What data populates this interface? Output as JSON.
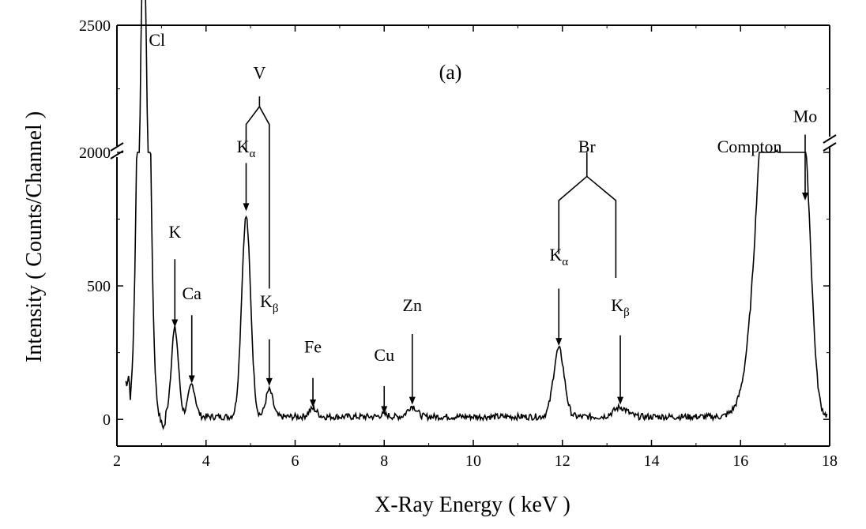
{
  "chart_data": {
    "type": "line",
    "title": "",
    "panel_label": "(a)",
    "xlabel": "X-Ray Energy ( keV )",
    "ylabel": "Intensity ( Counts/Channel )",
    "xlim": [
      2,
      18
    ],
    "ylim_lower": [
      -100,
      1000
    ],
    "ylim_upper": [
      2000,
      2500
    ],
    "x_ticks": [
      "2",
      "4",
      "6",
      "8",
      "10",
      "12",
      "14",
      "16",
      "18"
    ],
    "y_ticks": [
      "0",
      "500",
      "2000",
      "2500"
    ],
    "broken_y_axis": true,
    "grid": false,
    "series": [
      {
        "peaks": [
          {
            "center": 2.6,
            "height": 2800,
            "width": 0.11
          },
          {
            "center": 3.3,
            "height": 330,
            "width": 0.08
          },
          {
            "center": 3.68,
            "height": 120,
            "width": 0.08
          },
          {
            "center": 4.9,
            "height": 750,
            "width": 0.1
          },
          {
            "center": 5.42,
            "height": 100,
            "width": 0.08
          },
          {
            "center": 6.4,
            "height": 30,
            "width": 0.09
          },
          {
            "center": 8.0,
            "height": 8,
            "width": 0.09
          },
          {
            "center": 8.63,
            "height": 40,
            "width": 0.1
          },
          {
            "center": 11.92,
            "height": 255,
            "width": 0.12
          },
          {
            "center": 13.3,
            "height": 35,
            "width": 0.15
          },
          {
            "center": 16.8,
            "height": 2000,
            "width": 0.32
          },
          {
            "center": 17.45,
            "height": 770,
            "width": 0.14
          }
        ],
        "baseline": 10
      }
    ],
    "annotations": [
      {
        "text": "Cl",
        "x": 2.9,
        "y": 2420
      },
      {
        "text": "V",
        "x": 5.2,
        "y": 2290
      },
      {
        "text": "K",
        "x": 3.3,
        "y": 680
      },
      {
        "text": "Ca",
        "x": 3.68,
        "y": 450
      },
      {
        "text": "K",
        "sub": "α",
        "x": 4.9,
        "y": 1100
      },
      {
        "text": "K",
        "sub": "β",
        "x": 5.42,
        "y": 420
      },
      {
        "text": "Fe",
        "x": 6.4,
        "y": 250
      },
      {
        "text": "Cu",
        "x": 8.0,
        "y": 220
      },
      {
        "text": "Zn",
        "x": 8.63,
        "y": 405
      },
      {
        "text": "Br",
        "x": 12.55,
        "y": 1130
      },
      {
        "text": "K",
        "sub": "α",
        "x": 11.92,
        "y": 595
      },
      {
        "text": "K",
        "sub": "β",
        "x": 13.3,
        "y": 405
      },
      {
        "text": "Compton",
        "x": 16.2,
        "y": 1050
      },
      {
        "text": "Mo",
        "x": 17.45,
        "y": 2120
      }
    ]
  }
}
